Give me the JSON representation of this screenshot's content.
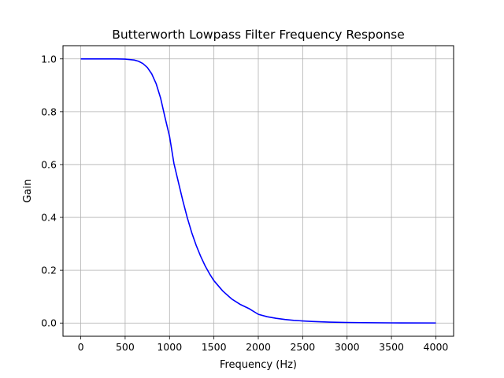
{
  "chart_data": {
    "type": "line",
    "title": "Butterworth Lowpass Filter Frequency Response",
    "xlabel": "Frequency (Hz)",
    "ylabel": "Gain",
    "xlim": [
      -200,
      4200
    ],
    "ylim": [
      -0.05,
      1.05
    ],
    "xticks": [
      0,
      500,
      1000,
      1500,
      2000,
      2500,
      3000,
      3500,
      4000
    ],
    "yticks": [
      0.0,
      0.2,
      0.4,
      0.6,
      0.8,
      1.0
    ],
    "xtick_labels": [
      "0",
      "500",
      "1000",
      "1500",
      "2000",
      "2500",
      "3000",
      "3500",
      "4000"
    ],
    "ytick_labels": [
      "0.0",
      "0.2",
      "0.4",
      "0.6",
      "0.8",
      "1.0"
    ],
    "grid": true,
    "series": [
      {
        "color": "#0000ff",
        "x": [
          0,
          100,
          200,
          300,
          400,
          500,
          600,
          650,
          700,
          750,
          800,
          850,
          900,
          950,
          1000,
          1050,
          1100,
          1150,
          1200,
          1250,
          1300,
          1350,
          1400,
          1450,
          1500,
          1600,
          1700,
          1800,
          1900,
          2000,
          2100,
          2200,
          2300,
          2400,
          2500,
          2600,
          2800,
          3000,
          3200,
          3500,
          4000
        ],
        "y": [
          1.0,
          1.0,
          1.0,
          1.0,
          0.9999,
          0.9992,
          0.9958,
          0.9911,
          0.9824,
          0.9674,
          0.943,
          0.9055,
          0.8509,
          0.777,
          0.7071,
          0.6036,
          0.5331,
          0.4628,
          0.3988,
          0.3425,
          0.2943,
          0.2531,
          0.2173,
          0.1869,
          0.1604,
          0.1212,
          0.0912,
          0.0699,
          0.0539,
          0.0331,
          0.024,
          0.0181,
          0.0135,
          0.0103,
          0.008,
          0.0062,
          0.0036,
          0.0022,
          0.0014,
          0.0007,
          0.0003
        ]
      }
    ]
  }
}
